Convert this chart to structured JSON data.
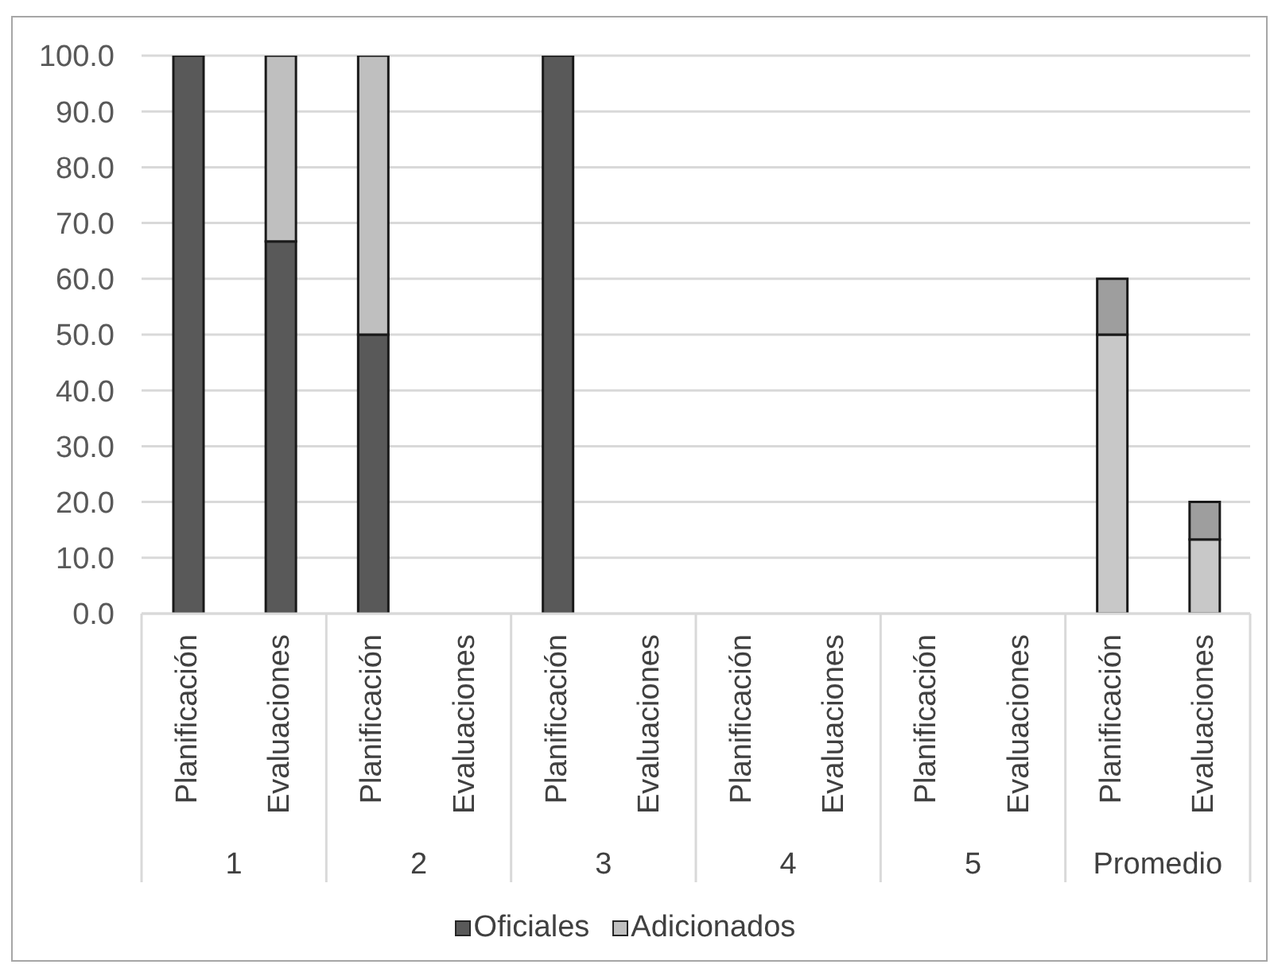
{
  "chart_data": {
    "type": "bar",
    "stacked": true,
    "categories": [
      "Planificación",
      "Evaluaciones",
      "Planificación",
      "Evaluaciones",
      "Planificación",
      "Evaluaciones",
      "Planificación",
      "Evaluaciones",
      "Planificación",
      "Evaluaciones",
      "Planificación",
      "Evaluaciones"
    ],
    "series": [
      {
        "name": "Oficiales",
        "color": "#595959",
        "colors": [
          "#595959",
          "#595959",
          "#595959",
          "#595959",
          "#595959",
          "#595959",
          "#595959",
          "#595959",
          "#595959",
          "#595959",
          "#c8c8c8",
          "#c8c8c8"
        ],
        "values": [
          100,
          66.7,
          50,
          0,
          100,
          0,
          0,
          0,
          0,
          0,
          50,
          13.3
        ]
      },
      {
        "name": "Adicionados",
        "color": "#bfbfbf",
        "colors": [
          "#bfbfbf",
          "#bfbfbf",
          "#bfbfbf",
          "#bfbfbf",
          "#bfbfbf",
          "#bfbfbf",
          "#bfbfbf",
          "#bfbfbf",
          "#bfbfbf",
          "#bfbfbf",
          "#9e9e9e",
          "#9e9e9e"
        ],
        "values": [
          0,
          33.3,
          50,
          0,
          0,
          0,
          0,
          0,
          0,
          0,
          10,
          6.7
        ]
      }
    ],
    "ylim": [
      0,
      100
    ],
    "yticks": [
      {
        "value": 0,
        "label": "0.0"
      },
      {
        "value": 10,
        "label": "10.0"
      },
      {
        "value": 20,
        "label": "20.0"
      },
      {
        "value": 30,
        "label": "30.0"
      },
      {
        "value": 40,
        "label": "40.0"
      },
      {
        "value": 50,
        "label": "50.0"
      },
      {
        "value": 60,
        "label": "60.0"
      },
      {
        "value": 70,
        "label": "70.0"
      },
      {
        "value": 80,
        "label": "80.0"
      },
      {
        "value": 90,
        "label": "90.0"
      },
      {
        "value": 100,
        "label": "100.0"
      }
    ],
    "grid": "y",
    "legend": "bottom",
    "annotations": [
      "1",
      "2",
      "3",
      "4",
      "5",
      "Promedio"
    ]
  }
}
